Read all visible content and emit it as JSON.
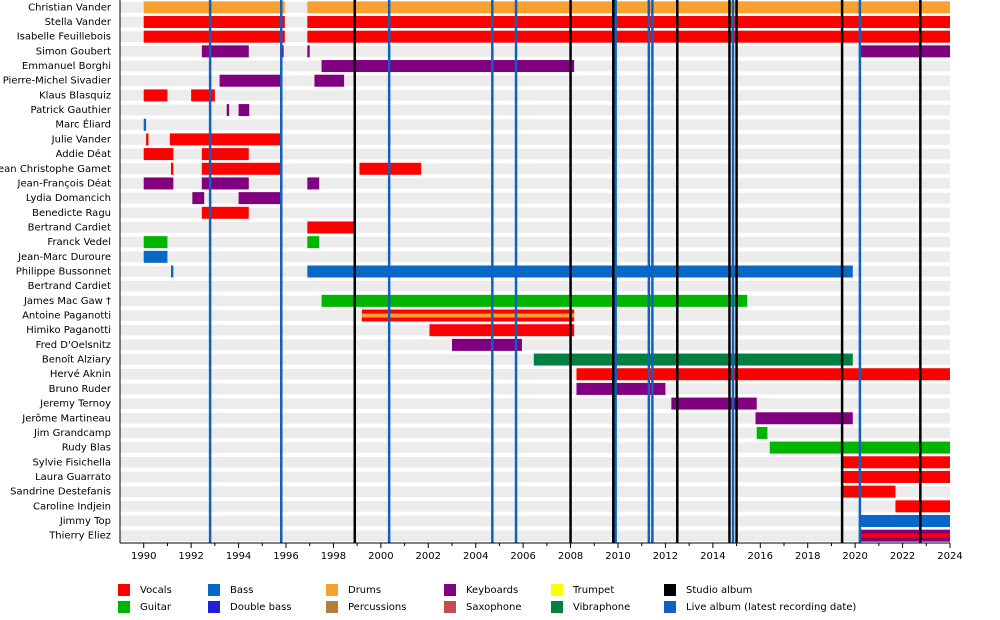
{
  "chart_data": {
    "type": "timeline",
    "xlim": [
      1989,
      2024
    ],
    "xticks": [
      1990,
      1992,
      1994,
      1996,
      1998,
      2000,
      2002,
      2004,
      2006,
      2008,
      2010,
      2012,
      2014,
      2016,
      2018,
      2020,
      2022,
      2024
    ],
    "roles": [
      {
        "name": "Vocals",
        "color": "#ff0000"
      },
      {
        "name": "Guitar",
        "color": "#00b400"
      },
      {
        "name": "Bass",
        "color": "#0868c8"
      },
      {
        "name": "Double bass",
        "color": "#2020d8"
      },
      {
        "name": "Drums",
        "color": "#f8a030"
      },
      {
        "name": "Percussions",
        "color": "#b08040"
      },
      {
        "name": "Keyboards",
        "color": "#800080"
      },
      {
        "name": "Saxophone",
        "color": "#c05050"
      },
      {
        "name": "Trumpet",
        "color": "#ffff00"
      },
      {
        "name": "Vibraphone",
        "color": "#008040"
      },
      {
        "name": "Studio album",
        "color": "#000000"
      },
      {
        "name": "Live album (latest recording date)",
        "color": "#1060c0"
      }
    ],
    "studio_albums": [
      1998.9,
      2008.0,
      2009.8,
      2012.5,
      2014.7,
      2015.0,
      2019.45,
      2022.75
    ],
    "live_albums": [
      1992.8,
      1995.8,
      2000.35,
      2004.7,
      2005.7,
      2009.9,
      2011.3,
      2011.45,
      2014.85,
      2020.2
    ],
    "members": [
      {
        "name": "Christian Vander",
        "spans": [
          {
            "roles": [
              "Drums"
            ],
            "start": 1990,
            "end": 1995.95
          },
          {
            "roles": [
              "Drums"
            ],
            "start": 1996.9,
            "end": 2024
          }
        ]
      },
      {
        "name": "Stella Vander",
        "spans": [
          {
            "roles": [
              "Vocals"
            ],
            "start": 1990,
            "end": 1995.95
          },
          {
            "roles": [
              "Vocals"
            ],
            "start": 1996.9,
            "end": 2024
          }
        ]
      },
      {
        "name": "Isabelle Feuillebois",
        "spans": [
          {
            "roles": [
              "Vocals"
            ],
            "start": 1990,
            "end": 1995.95
          },
          {
            "roles": [
              "Vocals"
            ],
            "start": 1996.9,
            "end": 2024
          }
        ]
      },
      {
        "name": "Simon Goubert",
        "spans": [
          {
            "roles": [
              "Keyboards"
            ],
            "start": 1992.45,
            "end": 1994.43
          },
          {
            "roles": [
              "Keyboards"
            ],
            "start": 1995.8,
            "end": 1995.9
          },
          {
            "roles": [
              "Keyboards"
            ],
            "start": 1996.9,
            "end": 1997.0
          },
          {
            "roles": [
              "Keyboards"
            ],
            "start": 2020.2,
            "end": 2024
          }
        ]
      },
      {
        "name": "Emmanuel Borghi",
        "spans": [
          {
            "roles": [
              "Keyboards"
            ],
            "start": 1997.5,
            "end": 2008.15
          }
        ]
      },
      {
        "name": "Pierre-Michel Sivadier",
        "spans": [
          {
            "roles": [
              "Keyboards"
            ],
            "start": 1993.2,
            "end": 1995.8
          },
          {
            "roles": [
              "Keyboards"
            ],
            "start": 1997.2,
            "end": 1998.45
          }
        ]
      },
      {
        "name": "Klaus Blasquiz",
        "spans": [
          {
            "roles": [
              "Vocals"
            ],
            "start": 1990,
            "end": 1991
          },
          {
            "roles": [
              "Vocals"
            ],
            "start": 1992,
            "end": 1993
          }
        ]
      },
      {
        "name": "Patrick Gauthier",
        "spans": [
          {
            "roles": [
              "Keyboards"
            ],
            "start": 1993.5,
            "end": 1993.6
          },
          {
            "roles": [
              "Keyboards"
            ],
            "start": 1994,
            "end": 1994.45
          }
        ]
      },
      {
        "name": "Marc Éliard",
        "spans": [
          {
            "roles": [
              "Bass"
            ],
            "start": 1990,
            "end": 1990.1
          }
        ]
      },
      {
        "name": "Julie Vander",
        "spans": [
          {
            "roles": [
              "Vocals"
            ],
            "start": 1990.1,
            "end": 1990.2
          },
          {
            "roles": [
              "Vocals"
            ],
            "start": 1991.1,
            "end": 1995.8
          },
          {
            "roles": [
              "Vocals"
            ],
            "start": 2000.3,
            "end": 2000.4
          }
        ]
      },
      {
        "name": "Addie Déat",
        "spans": [
          {
            "roles": [
              "Vocals"
            ],
            "start": 1990,
            "end": 1991.25
          },
          {
            "roles": [
              "Vocals"
            ],
            "start": 1992.45,
            "end": 1994.43
          }
        ]
      },
      {
        "name": "Jean Christophe Gamet",
        "spans": [
          {
            "roles": [
              "Vocals"
            ],
            "start": 1991.15,
            "end": 1991.25
          },
          {
            "roles": [
              "Vocals"
            ],
            "start": 1992.45,
            "end": 1995.8
          },
          {
            "roles": [
              "Vocals"
            ],
            "start": 1999.1,
            "end": 2001.7
          }
        ]
      },
      {
        "name": "Jean-François Déat",
        "spans": [
          {
            "roles": [
              "Keyboards"
            ],
            "start": 1990,
            "end": 1991.25
          },
          {
            "roles": [
              "Keyboards"
            ],
            "start": 1992.45,
            "end": 1994.43
          },
          {
            "roles": [
              "Keyboards"
            ],
            "start": 1996.9,
            "end": 1997.4
          }
        ]
      },
      {
        "name": "Lydia Domancich",
        "spans": [
          {
            "roles": [
              "Keyboards"
            ],
            "start": 1992.05,
            "end": 1992.55
          },
          {
            "roles": [
              "Keyboards"
            ],
            "start": 1994,
            "end": 1995.8
          }
        ]
      },
      {
        "name": "Benedicte Ragu",
        "spans": [
          {
            "roles": [
              "Vocals"
            ],
            "start": 1992.45,
            "end": 1994.43
          }
        ]
      },
      {
        "name": "Bertrand Cardiet",
        "spans": [
          {
            "roles": [
              "Vocals"
            ],
            "start": 1996.9,
            "end": 1998.9
          }
        ]
      },
      {
        "name": "Franck Vedel",
        "spans": [
          {
            "roles": [
              "Guitar"
            ],
            "start": 1990,
            "end": 1991
          },
          {
            "roles": [
              "Guitar"
            ],
            "start": 1996.9,
            "end": 1997.4
          }
        ]
      },
      {
        "name": "Jean-Marc Duroure",
        "spans": [
          {
            "roles": [
              "Bass"
            ],
            "start": 1990,
            "end": 1991
          }
        ]
      },
      {
        "name": "Philippe Bussonnet",
        "spans": [
          {
            "roles": [
              "Bass"
            ],
            "start": 1991.15,
            "end": 1991.25
          },
          {
            "roles": [
              "Bass"
            ],
            "start": 1996.9,
            "end": 2019.9
          }
        ]
      },
      {
        "name": "Bertrand Cardiet",
        "spans": []
      },
      {
        "name": "James Mac Gaw  †",
        "spans": [
          {
            "roles": [
              "Guitar"
            ],
            "start": 1997.5,
            "end": 2015.45
          }
        ]
      },
      {
        "name": "Antoine Paganotti",
        "spans": [
          {
            "roles": [
              "Vocals",
              "Drums"
            ],
            "start": 1999.2,
            "end": 2008.15
          }
        ]
      },
      {
        "name": "Himiko Paganotti",
        "spans": [
          {
            "roles": [
              "Vocals"
            ],
            "start": 2002.05,
            "end": 2008.15
          }
        ]
      },
      {
        "name": "Fred D'Oelsnitz",
        "spans": [
          {
            "roles": [
              "Keyboards"
            ],
            "start": 2003,
            "end": 2005.95
          }
        ]
      },
      {
        "name": "Benoît Alziary",
        "spans": [
          {
            "roles": [
              "Vibraphone"
            ],
            "start": 2006.45,
            "end": 2019.9
          }
        ]
      },
      {
        "name": "Hervé Aknin",
        "spans": [
          {
            "roles": [
              "Vocals"
            ],
            "start": 2008.25,
            "end": 2024
          }
        ]
      },
      {
        "name": "Bruno Ruder",
        "spans": [
          {
            "roles": [
              "Keyboards"
            ],
            "start": 2008.25,
            "end": 2012.0
          }
        ]
      },
      {
        "name": "Jeremy Ternoy",
        "spans": [
          {
            "roles": [
              "Keyboards"
            ],
            "start": 2012.25,
            "end": 2015.85
          }
        ]
      },
      {
        "name": "Jerôme Martineau",
        "spans": [
          {
            "roles": [
              "Keyboards"
            ],
            "start": 2015.8,
            "end": 2019.9
          }
        ]
      },
      {
        "name": "Jim Grandcamp",
        "spans": [
          {
            "roles": [
              "Guitar"
            ],
            "start": 2015.85,
            "end": 2016.3
          }
        ]
      },
      {
        "name": "Rudy Blas",
        "spans": [
          {
            "roles": [
              "Guitar"
            ],
            "start": 2016.4,
            "end": 2024
          }
        ]
      },
      {
        "name": "Sylvie Fisichella",
        "spans": [
          {
            "roles": [
              "Vocals"
            ],
            "start": 2019.45,
            "end": 2024
          }
        ]
      },
      {
        "name": "Laura Guarrato",
        "spans": [
          {
            "roles": [
              "Vocals"
            ],
            "start": 2019.45,
            "end": 2024
          }
        ]
      },
      {
        "name": "Sandrine Destefanis",
        "spans": [
          {
            "roles": [
              "Vocals"
            ],
            "start": 2019.45,
            "end": 2021.7
          }
        ]
      },
      {
        "name": "Caroline Indjein",
        "spans": [
          {
            "roles": [
              "Vocals"
            ],
            "start": 2021.7,
            "end": 2024
          }
        ]
      },
      {
        "name": "Jimmy Top",
        "spans": [
          {
            "roles": [
              "Bass"
            ],
            "start": 2020.2,
            "end": 2024
          }
        ]
      },
      {
        "name": "Thierry Eliez",
        "spans": [
          {
            "roles": [
              "Keyboards",
              "Vocals"
            ],
            "start": 2020.2,
            "end": 2024
          }
        ]
      }
    ]
  }
}
